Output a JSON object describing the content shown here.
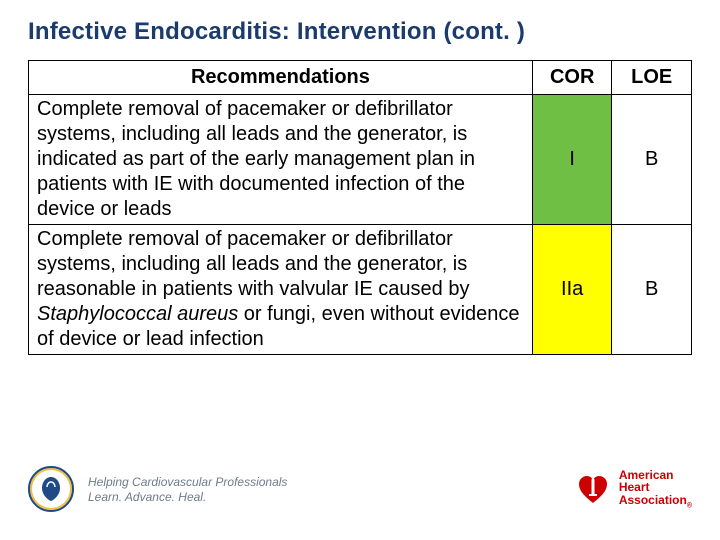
{
  "title": "Infective Endocarditis: Intervention (cont. )",
  "table": {
    "headers": {
      "rec": "Recommendations",
      "cor": "COR",
      "loe": "LOE"
    },
    "rows": [
      {
        "rec_html": "Complete removal of pacemaker or defibrillator systems, including all leads and the generator, is indicated as part of the early management plan in patients with IE with documented infection of the device or leads",
        "cor": "I",
        "loe": "B",
        "cor_bg": "#6fbf44",
        "loe_bg": "#ffffff"
      },
      {
        "rec_html": "Complete removal of pacemaker or defibrillator systems, including all leads and the generator, is reasonable in patients with valvular IE caused by <span class=\"italic\">Staphylococcal aureus</span> or fungi, even without evidence of device or lead infection",
        "cor": "IIa",
        "loe": "B",
        "cor_bg": "#ffff00",
        "loe_bg": "#ffffff"
      }
    ]
  },
  "footer": {
    "tagline1": "Helping Cardiovascular Professionals",
    "tagline2": "Learn. Advance. Heal.",
    "aha1": "American",
    "aha2": "Heart",
    "aha3": "Association",
    "heart_fill": "#cc0000",
    "torch_fill": "#ffffff",
    "acc_stroke": "#204a87"
  }
}
